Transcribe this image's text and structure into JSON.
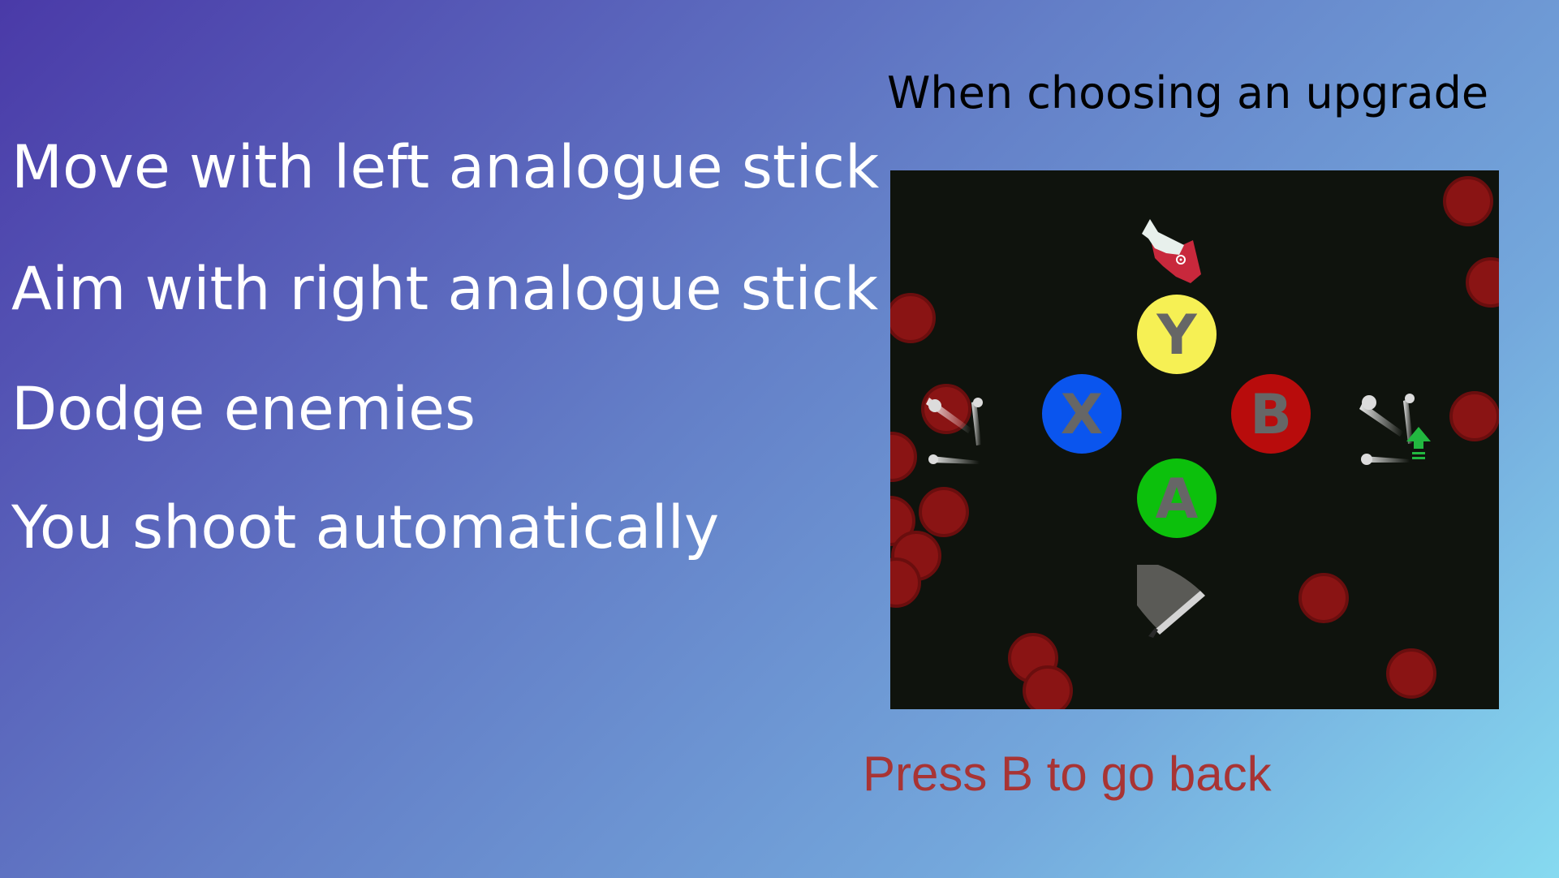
{
  "instructions": {
    "move": "Move with left analogue stick",
    "aim": "Aim with right analogue stick",
    "dodge": "Dodge enemies",
    "shoot": "You shoot automatically"
  },
  "upgrade_screen": {
    "title": "When choosing an upgrade",
    "buttons": {
      "y": {
        "label": "Y",
        "color": "#f6f054"
      },
      "x": {
        "label": "X",
        "color": "#0a55ee"
      },
      "b": {
        "label": "B",
        "color": "#b80c0c"
      },
      "a": {
        "label": "A",
        "color": "#0cc00c"
      }
    },
    "button_label_color": "#666666",
    "enemy_color": "#8a1414",
    "upgrade_icons": {
      "y": "bird-on-red-cannon-icon",
      "x": "multi-shot-bullets-icon",
      "b": "multi-shot-plus-upgrade-icon",
      "a": "shield-blade-icon"
    }
  },
  "back_hint": {
    "text": "Press B to go back",
    "color": "#a83434"
  }
}
